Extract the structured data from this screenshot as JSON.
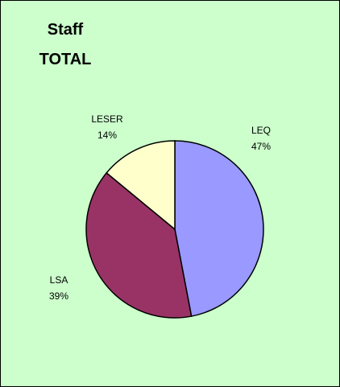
{
  "chart_data": {
    "type": "pie",
    "title": "Staff TOTAL",
    "categories": [
      "LEQ",
      "LSA",
      "LESER"
    ],
    "values": [
      47,
      39,
      14
    ],
    "value_labels": [
      "47%",
      "39%",
      "14%"
    ],
    "colors": [
      "#9999ff",
      "#993366",
      "#ffffcc"
    ]
  }
}
